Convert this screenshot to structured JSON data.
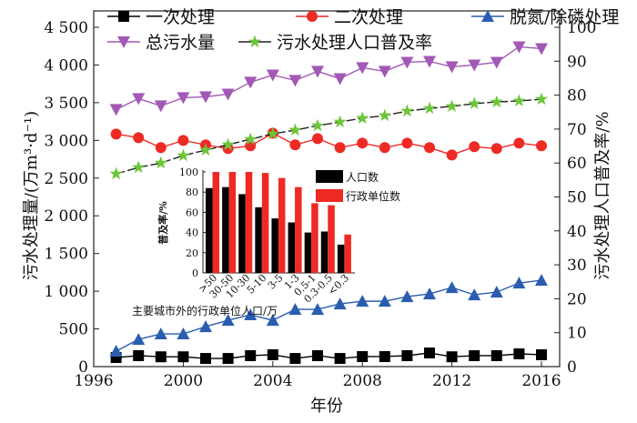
{
  "chart_data": [
    {
      "type": "line",
      "xlabel": "年份",
      "ylabel": "污水处理量/(万m³·d⁻¹)",
      "y2label": "污水处理人口普及率/%",
      "xlim": [
        1996,
        2017
      ],
      "ylim": [
        0,
        4500
      ],
      "y2lim": [
        0,
        100
      ],
      "xticks": [
        "1996",
        "2000",
        "2004",
        "2008",
        "2012",
        "2016"
      ],
      "yticks": [
        "0",
        "500",
        "1 000",
        "1 500",
        "2 000",
        "2 500",
        "3 000",
        "3 500",
        "4 000",
        "4 500"
      ],
      "y2ticks": [
        "0",
        "10",
        "20",
        "30",
        "40",
        "50",
        "60",
        "70",
        "80",
        "90",
        "100"
      ],
      "legend_placement": "top",
      "x": [
        1997,
        1998,
        1999,
        2000,
        2001,
        2002,
        2003,
        2004,
        2005,
        2006,
        2007,
        2008,
        2009,
        2010,
        2011,
        2012,
        2013,
        2014,
        2015,
        2016
      ],
      "series": [
        {
          "name": "一次处理",
          "axis": "left",
          "marker": "square",
          "color": "#000000",
          "values": [
            120,
            145,
            130,
            130,
            108,
            108,
            145,
            157,
            108,
            145,
            108,
            133,
            133,
            145,
            181,
            130,
            145,
            145,
            169,
            157
          ]
        },
        {
          "name": "二次处理",
          "axis": "left",
          "marker": "circle",
          "color": "#ee2a24",
          "values": [
            3084,
            3036,
            2904,
            3000,
            2940,
            2892,
            2928,
            3096,
            2940,
            3024,
            2904,
            2964,
            2904,
            2964,
            2904,
            2807,
            2916,
            2892,
            2964,
            2928
          ]
        },
        {
          "name": "脱氮/除磷处理",
          "axis": "left",
          "marker": "triangle-up",
          "color": "#2a5db0",
          "values": [
            205,
            361,
            434,
            434,
            530,
            614,
            687,
            614,
            759,
            759,
            831,
            867,
            867,
            928,
            964,
            1048,
            952,
            988,
            1108,
            1145
          ]
        },
        {
          "name": "总污水量",
          "axis": "left",
          "marker": "triangle-down",
          "color": "#a259b5",
          "values": [
            3410,
            3554,
            3458,
            3566,
            3578,
            3614,
            3771,
            3867,
            3795,
            3916,
            3819,
            3964,
            3916,
            4036,
            4048,
            3976,
            4000,
            4036,
            4241,
            4217
          ]
        },
        {
          "name": "污水处理人口普及率",
          "axis": "right",
          "marker": "star",
          "color": "#6cc63a",
          "line_color": "#222222",
          "dashed": true,
          "values": [
            56.8,
            58.7,
            60,
            62.2,
            63.8,
            65.4,
            67,
            68.6,
            69.7,
            71,
            72.1,
            73.2,
            74,
            75.3,
            76.1,
            76.7,
            77.5,
            78,
            78.3,
            78.8
          ]
        }
      ]
    },
    {
      "type": "bar",
      "xlabel": "主要城市外的行政单位人口/万",
      "ylabel": "普及率/%",
      "ylim": [
        0,
        100
      ],
      "yticks": [
        "0",
        "20",
        "40",
        "60",
        "80",
        "100"
      ],
      "legend_placement": "top-right",
      "categories": [
        ">50",
        "30-50",
        "10-30",
        "5-10",
        "3-5",
        "1-3",
        "0.5-1",
        "0.3-0.5",
        "<0.3"
      ],
      "series": [
        {
          "name": "人口数",
          "color": "#000000",
          "values": [
            84,
            85,
            78,
            65,
            54,
            50,
            40,
            41,
            28
          ]
        },
        {
          "name": "行政单位数",
          "color": "#ee2a24",
          "values": [
            100,
            100,
            100,
            99,
            94,
            85,
            69,
            67,
            38
          ]
        }
      ]
    }
  ]
}
